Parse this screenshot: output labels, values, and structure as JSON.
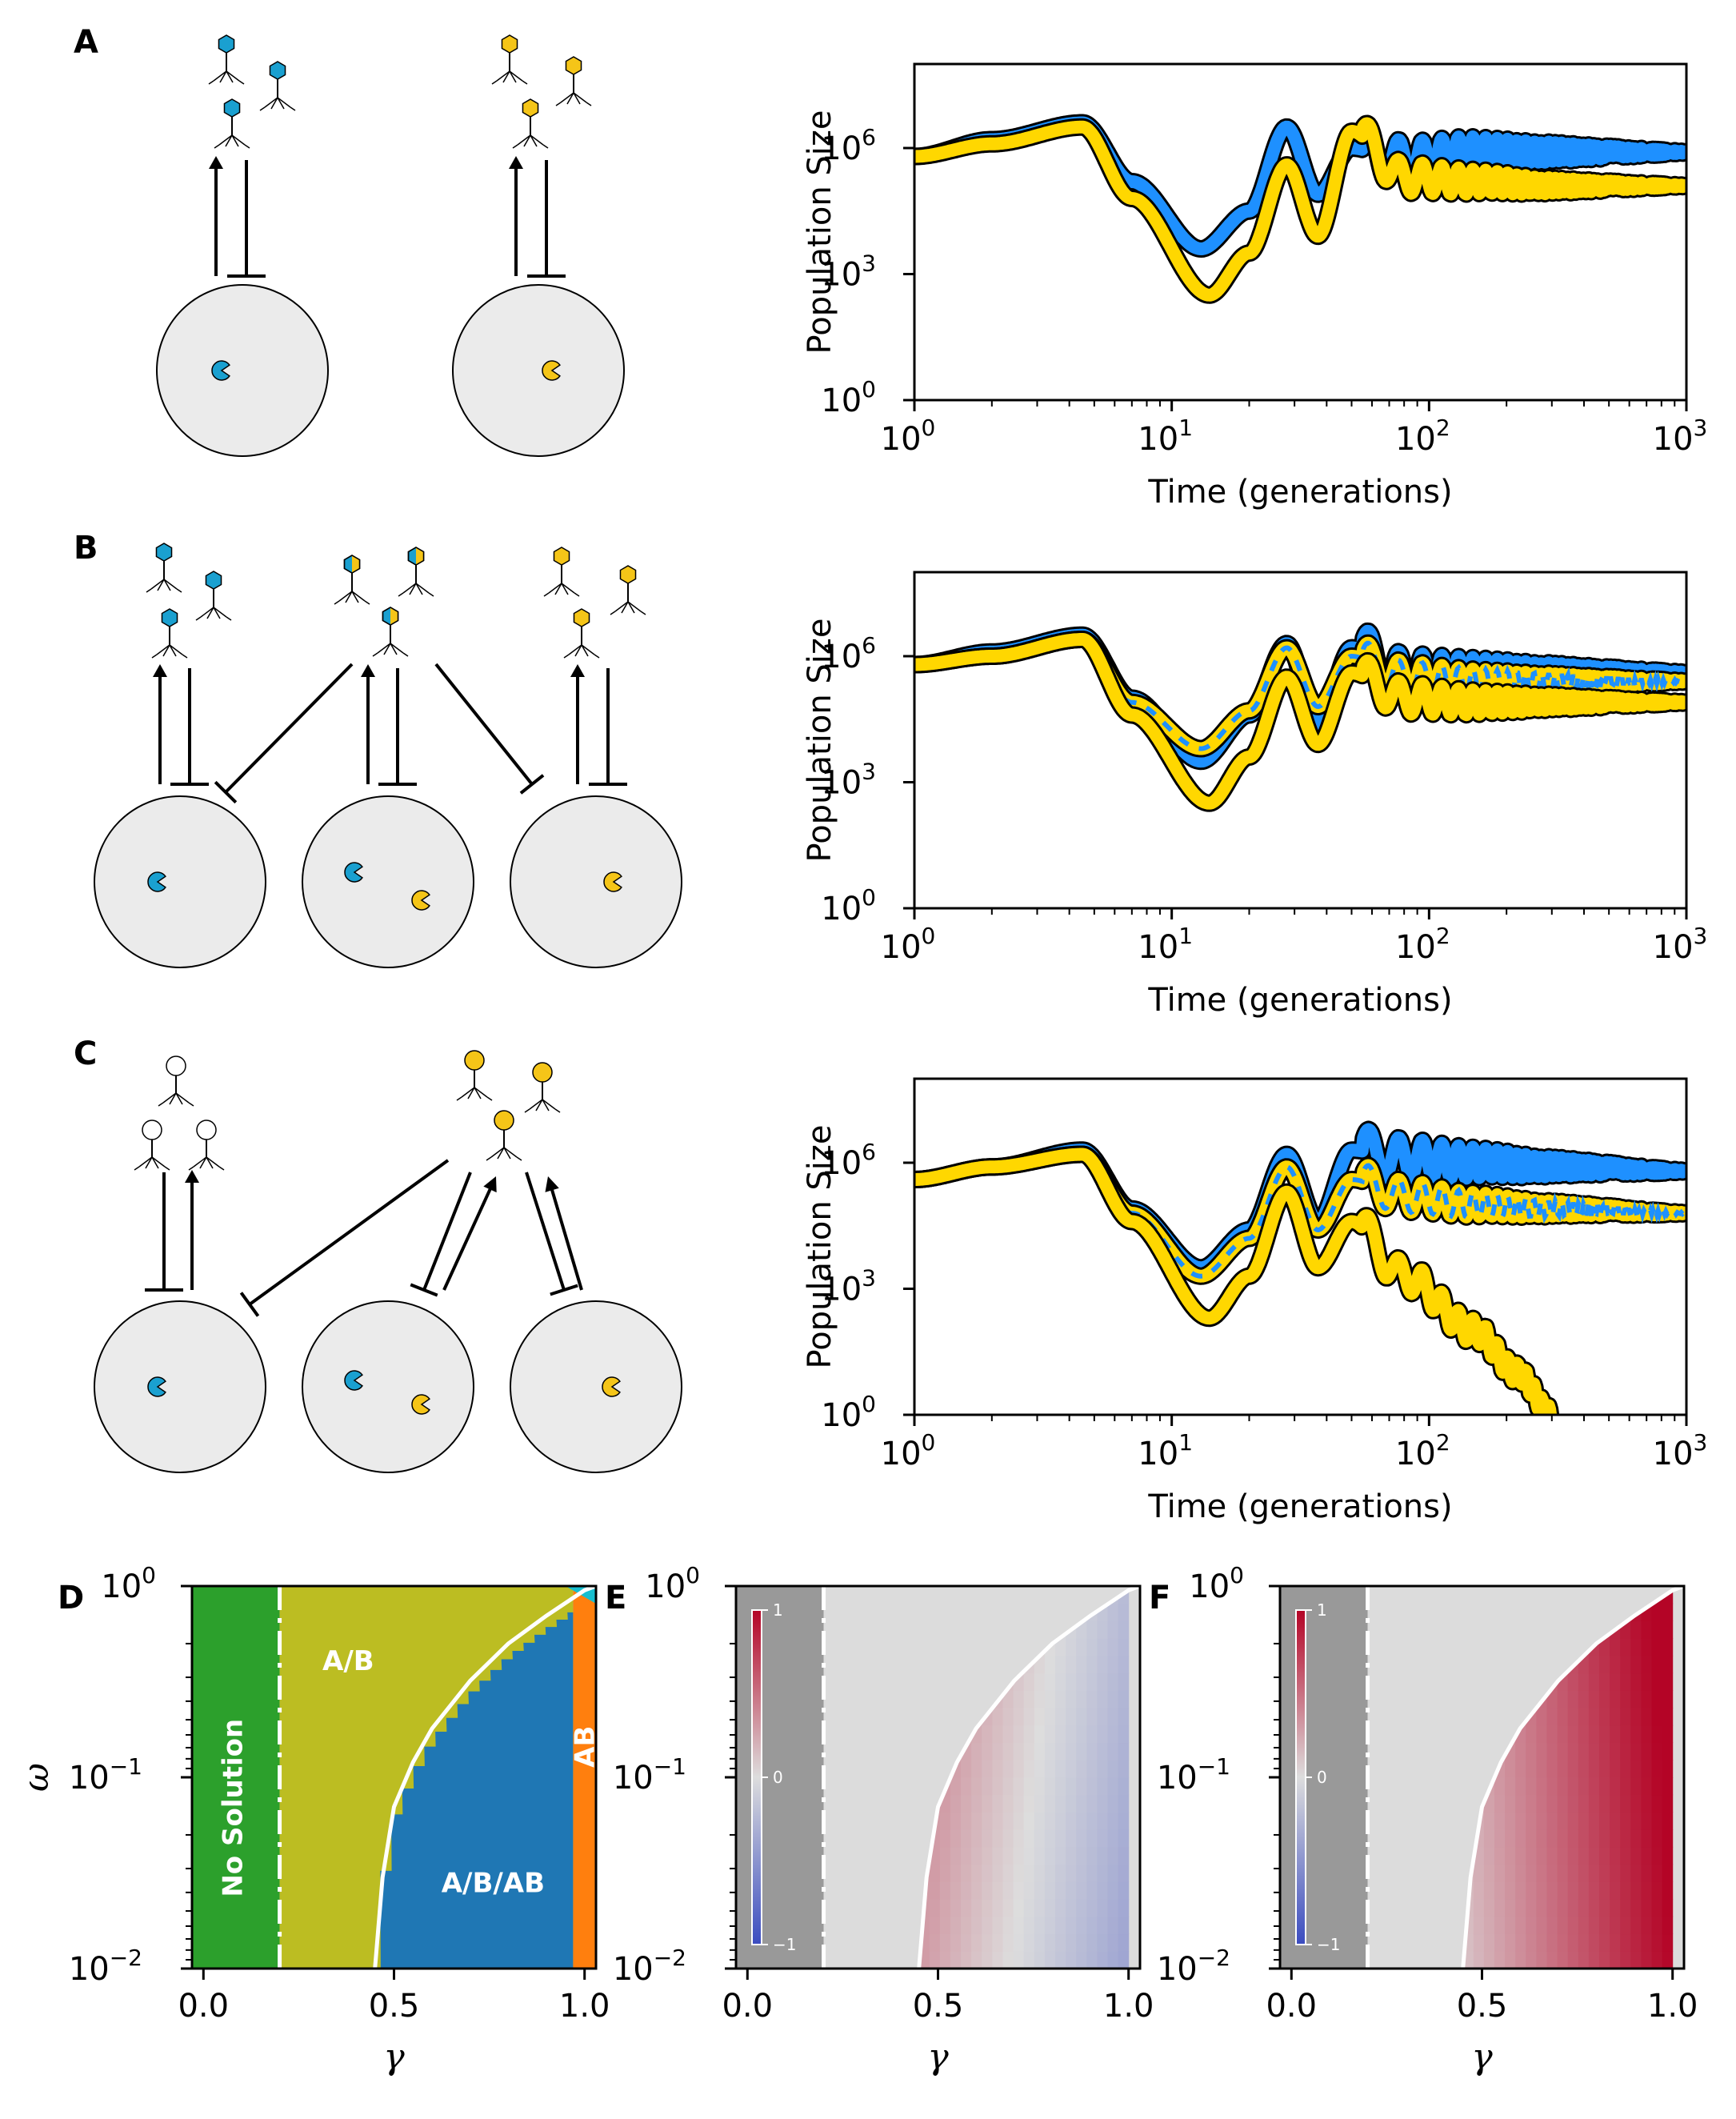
{
  "panels": {
    "A": "A",
    "B": "B",
    "C": "C",
    "D": "D",
    "E": "E",
    "F": "F"
  },
  "colors": {
    "blue": "#1e90ff",
    "yellow": "#ffd700",
    "cell_fill": "#ebebeb",
    "pac_blue": "#1aa0d0",
    "pac_yellow": "#f5c518",
    "no_solution": "#2ca02c",
    "ab_only": "#bcbd22",
    "a_b_ab": "#1f77b4",
    "ab": "#ff7f0e",
    "unknown_corner": "#17becf"
  },
  "time_series": {
    "ylabel": "Population Size",
    "xlabel": "Time (generations)",
    "x_ticks": [
      {
        "base": "10",
        "exp": "0"
      },
      {
        "base": "10",
        "exp": "1"
      },
      {
        "base": "10",
        "exp": "2"
      },
      {
        "base": "10",
        "exp": "3"
      }
    ],
    "y_ticks": [
      {
        "base": "10",
        "exp": "0"
      },
      {
        "base": "10",
        "exp": "3"
      },
      {
        "base": "10",
        "exp": "6"
      }
    ]
  },
  "phase": {
    "xlabel": "γ",
    "ylabel": "ω",
    "x_ticks": [
      "0.0",
      "0.5",
      "1.0"
    ],
    "y_ticks": [
      {
        "base": "10",
        "exp": "0"
      },
      {
        "base": "10",
        "exp": "−1"
      },
      {
        "base": "10",
        "exp": "−2"
      }
    ],
    "labels": {
      "no_solution": "No Solution",
      "a_b": "A/B",
      "a_b_ab": "A/B/AB",
      "ab": "AB"
    },
    "colorbar_ticks": [
      "1",
      "0",
      "−1"
    ]
  },
  "chart_data": [
    {
      "type": "line",
      "panel": "A",
      "x_scale": "log",
      "y_scale": "log",
      "xlim": [
        1,
        1000
      ],
      "ylim_exponent": [
        0,
        8
      ],
      "xlabel": "Time (generations)",
      "ylabel": "Population Size",
      "series": [
        {
          "color": "blue",
          "x": [
            1,
            2,
            4.5,
            7,
            13,
            20,
            28,
            37,
            50,
            80,
            150,
            300,
            1000
          ],
          "y_log10": [
            5.8,
            6.2,
            6.6,
            5.2,
            3.6,
            4.5,
            6.5,
            4.9,
            6.0,
            5.7,
            5.9,
            5.9,
            5.9
          ]
        },
        {
          "color": "yellow",
          "x": [
            1,
            2,
            4.5,
            7,
            14,
            20,
            28,
            37,
            50,
            80,
            150,
            300,
            1000
          ],
          "y_log10": [
            5.8,
            6.1,
            6.5,
            4.8,
            2.5,
            3.5,
            5.6,
            3.9,
            6.4,
            5.3,
            5.2,
            5.1,
            5.1
          ]
        }
      ]
    },
    {
      "type": "line",
      "panel": "B",
      "x_scale": "log",
      "y_scale": "log",
      "xlim": [
        1,
        1000
      ],
      "ylim_exponent": [
        0,
        8
      ],
      "xlabel": "Time (generations)",
      "ylabel": "Population Size",
      "series": [
        {
          "color": "blue",
          "x": [
            1,
            2,
            4.5,
            7,
            13,
            20,
            28,
            37,
            50,
            80,
            150,
            300,
            1000
          ],
          "y_log10": [
            5.8,
            6.1,
            6.5,
            5.0,
            3.5,
            4.6,
            6.3,
            4.4,
            6.2,
            5.6,
            5.6,
            5.6,
            5.6
          ]
        },
        {
          "color": "yellow",
          "x": [
            1,
            2,
            4.5,
            7,
            13,
            20,
            28,
            37,
            50,
            80,
            150,
            300,
            1000
          ],
          "y_log10": [
            5.8,
            6.0,
            6.4,
            4.9,
            3.8,
            4.7,
            6.2,
            4.8,
            6.0,
            5.5,
            5.4,
            5.4,
            5.4
          ]
        },
        {
          "color": "yellow",
          "x": [
            1,
            2,
            4.5,
            7,
            14,
            20,
            28,
            37,
            50,
            80,
            150,
            300,
            1000
          ],
          "y_log10": [
            5.8,
            6.0,
            6.4,
            4.6,
            2.5,
            3.6,
            5.5,
            3.9,
            5.6,
            5.0,
            4.9,
            4.9,
            4.9
          ]
        }
      ]
    },
    {
      "type": "line",
      "panel": "C",
      "x_scale": "log",
      "y_scale": "log",
      "xlim": [
        1,
        1000
      ],
      "ylim_exponent": [
        0,
        8
      ],
      "xlabel": "Time (generations)",
      "ylabel": "Population Size",
      "series": [
        {
          "color": "blue",
          "x": [
            1,
            2,
            4.5,
            7,
            13,
            20,
            28,
            37,
            50,
            80,
            150,
            300,
            1000
          ],
          "y_log10": [
            5.6,
            5.9,
            6.3,
            4.9,
            3.5,
            4.4,
            6.2,
            4.6,
            6.3,
            6.1,
            6.0,
            5.9,
            5.8
          ]
        },
        {
          "color": "yellow",
          "x": [
            1,
            2,
            4.5,
            7,
            13,
            20,
            28,
            37,
            50,
            80,
            150,
            300,
            1000
          ],
          "y_log10": [
            5.6,
            5.9,
            6.2,
            4.8,
            3.3,
            4.2,
            5.9,
            4.4,
            5.6,
            5.2,
            5.0,
            4.9,
            4.8
          ]
        },
        {
          "color": "yellow",
          "x": [
            1,
            2,
            4.5,
            7,
            14,
            20,
            28,
            37,
            50,
            80,
            150,
            220,
            300
          ],
          "y_log10": [
            5.6,
            5.9,
            6.2,
            4.6,
            2.3,
            3.3,
            5.3,
            3.5,
            4.6,
            3.3,
            2.0,
            1.0,
            0.0
          ]
        }
      ]
    },
    {
      "type": "heatmap",
      "panel": "D",
      "xlabel": "γ",
      "ylabel": "ω",
      "xlim": [
        -0.03,
        1.03
      ],
      "ylim": [
        0.01,
        1
      ],
      "regions": [
        {
          "label": "No Solution",
          "gamma_range": [
            -0.03,
            0.2
          ]
        },
        {
          "label": "A/B",
          "gamma_range": [
            0.2,
            0.97
          ],
          "above_curve": true
        },
        {
          "label": "A/B/AB",
          "gamma_range": [
            0.45,
            0.97
          ],
          "below_curve": true
        },
        {
          "label": "AB",
          "gamma_range": [
            0.97,
            1.03
          ]
        }
      ],
      "boundary_curve": {
        "gamma": [
          0.45,
          0.47,
          0.5,
          0.55,
          0.6,
          0.7,
          0.8,
          0.9,
          1.0
        ],
        "omega": [
          0.01,
          0.03,
          0.07,
          0.12,
          0.18,
          0.32,
          0.5,
          0.7,
          0.95
        ]
      },
      "dashdot_gamma": 0.2
    },
    {
      "type": "heatmap",
      "panel": "E",
      "xlabel": "γ",
      "ylabel": "ω",
      "colorbar": [
        -1,
        0,
        1
      ],
      "trend": "values near 0.5–0.6 slightly positive, decreasing to about −0.5 at γ=1.0 near low ω"
    },
    {
      "type": "heatmap",
      "panel": "F",
      "xlabel": "γ",
      "ylabel": "ω",
      "colorbar": [
        -1,
        0,
        1
      ],
      "trend": "positive values increasing from ~0.2 at γ=0.5 to ~1 at γ=1.0"
    }
  ]
}
